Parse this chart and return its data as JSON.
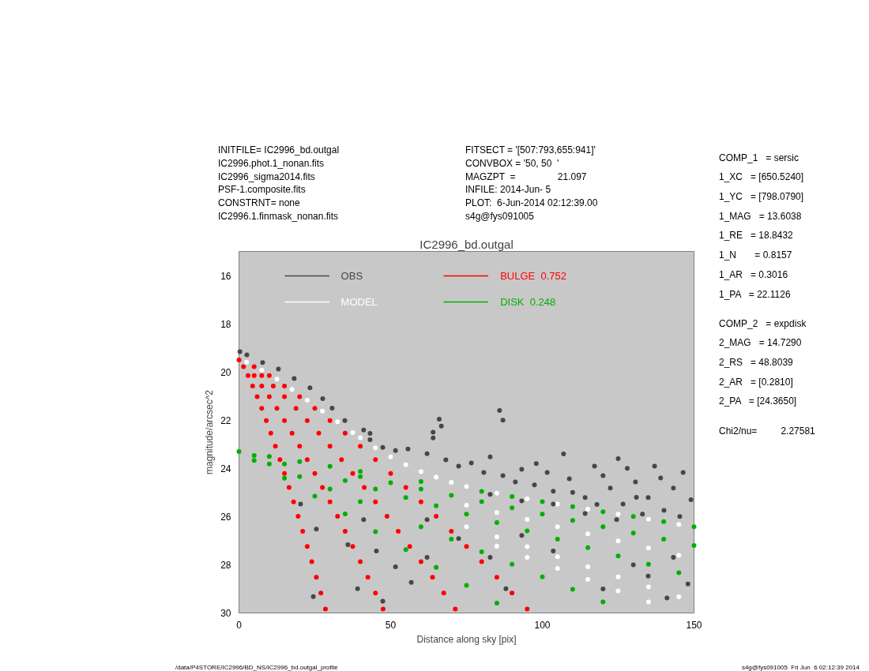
{
  "chart_data": {
    "type": "scatter",
    "title": "IC2996_bd.outgal",
    "xlabel": "Distance along sky [pix]",
    "ylabel": "magnitude/arcsec^2",
    "xlim": [
      0,
      150
    ],
    "xticks": [
      0,
      50,
      100,
      150
    ],
    "ylim": [
      30,
      15
    ],
    "yticks": [
      16,
      18,
      20,
      22,
      24,
      26,
      28,
      30
    ],
    "marker": "circle",
    "legend": "top left",
    "annotations": [
      "INITFILE= IC2996_bd.outgal\nIC2996.phot.1_nonan.fits\nIC2996_sigma2014.fits\nPSF-1.composite.fits\nCONSTRNT= none\nIC2996.1.finmask_nonan.fits",
      "FITSECT = '[507:793,655:941]'\nCONVBOX = '50, 50  '\nMAGZPT  =                21.097\nINFILE: 2014-Jun- 5\nPLOT:  6-Jun-2014 02:12:39.00\ns4g@fys091005",
      "COMP_1   = sersic\n1_XC   = [650.5240]\n1_YC   = [798.0790]\n1_MAG   = 13.6038\n1_RE   = 18.8432\n1_N       = 0.8157\n1_AR   = 0.3016\n1_PA   = 22.1126",
      "COMP_2   = expdisk\n2_MAG   = 14.7290\n2_RS   = 48.8039\n2_AR   = [0.2810]\n2_PA   = [24.3650]",
      "Chi2/nu=         2.27581",
      "/data/P4STORE/IC2996/BD_NS/IC2996_bd.outgal_profile",
      "s4g@fys091005  Fri Jun  6 02:12:39 2014"
    ],
    "series": [
      {
        "name": "OBS",
        "color": "#474747",
        "x": [
          0.3,
          2.6,
          7.8,
          13,
          18.2,
          23.4,
          27.6,
          30.7,
          34.9,
          41.1,
          43.2,
          43.2,
          47.4,
          51.6,
          55.7,
          62,
          64,
          68.2,
          72.4,
          76.6,
          80.7,
          82.8,
          87,
          91.1,
          93.2,
          97.4,
          101.6,
          103.6,
          108.9,
          114.1,
          117.2,
          122.4,
          126.6,
          130.7,
          134.9,
          137,
          140.1,
          143.2,
          145.3,
          146.4,
          93.2,
          114.1,
          124.5,
          82.8,
          103.6,
          64,
          66,
          66.7,
          87,
          85.9,
          62,
          72.4,
          82.8,
          93.2,
          103.6,
          134.9,
          143.2,
          141.1,
          88,
          25.5,
          24.5,
          35.9,
          41.1,
          45.3,
          51.6,
          56.8,
          62,
          39.1,
          47.4,
          20.3,
          110,
          120,
          128,
          133,
          149,
          118,
          98,
          107,
          125,
          139,
          131,
          120,
          130,
          148
        ],
        "values": [
          19.16,
          19.29,
          19.61,
          19.88,
          20.27,
          20.66,
          21.11,
          21.5,
          22.02,
          22.41,
          22.55,
          22.81,
          23.13,
          23.26,
          23.2,
          23.39,
          22.74,
          23.65,
          23.91,
          23.78,
          24.17,
          23.52,
          24.3,
          24.56,
          24.04,
          24.69,
          24.17,
          24.95,
          24.43,
          25.21,
          23.91,
          24.82,
          25.48,
          24.56,
          25.21,
          23.91,
          25.74,
          24.82,
          26.0,
          24.17,
          25.35,
          25.87,
          26.13,
          25.08,
          25.48,
          22.5,
          21.96,
          22.25,
          22.0,
          21.6,
          26.13,
          26.91,
          27.69,
          26.78,
          27.43,
          28.47,
          27.69,
          29.38,
          28.99,
          26.52,
          29.32,
          27.17,
          26.13,
          27.43,
          28.08,
          28.73,
          27.69,
          28.99,
          29.51,
          25.48,
          25.0,
          24.3,
          24.0,
          25.9,
          25.3,
          25.5,
          23.8,
          23.4,
          23.6,
          24.4,
          25.2,
          29.0,
          28.0,
          28.8
        ]
      },
      {
        "name": "MODEL",
        "color": "#ffffff",
        "x": [
          2.5,
          7.5,
          12.5,
          17.5,
          22.5,
          27.5,
          32.5,
          37.5,
          40,
          45,
          50,
          55,
          60,
          65,
          70,
          75,
          85,
          95,
          105,
          115,
          125,
          135,
          145,
          75,
          85,
          95,
          105,
          115,
          125,
          135,
          145,
          75,
          85,
          95,
          105,
          115,
          125,
          135,
          145,
          85,
          95,
          105,
          115,
          125,
          135
        ],
        "values": [
          19.59,
          19.92,
          20.3,
          20.72,
          21.17,
          21.62,
          22.07,
          22.52,
          22.73,
          23.15,
          23.52,
          23.85,
          24.14,
          24.37,
          24.58,
          24.75,
          25.03,
          25.26,
          25.48,
          25.69,
          25.9,
          26.11,
          26.32,
          25.53,
          25.83,
          26.12,
          26.42,
          26.72,
          27.01,
          27.31,
          27.61,
          26.42,
          26.84,
          27.25,
          27.67,
          28.08,
          28.5,
          28.92,
          29.33,
          27.23,
          27.69,
          28.15,
          28.61,
          29.08,
          29.54
        ]
      },
      {
        "name": "BULGE  0.752",
        "color": "#ff0000",
        "x": [
          0,
          5,
          10,
          15,
          20,
          25,
          30,
          35,
          40,
          45,
          50,
          55,
          60,
          65,
          70,
          75,
          80,
          85,
          90,
          95,
          7.5,
          11.3,
          15,
          18.8,
          22.5,
          26.3,
          30,
          33.8,
          37.5,
          41.3,
          45,
          48.8,
          52.5,
          56.3,
          60,
          63.8,
          67.5,
          71.3,
          5,
          7.5,
          10,
          12.5,
          15,
          17.5,
          20,
          22.5,
          25,
          27.5,
          30,
          32.5,
          35,
          37.5,
          40,
          42.5,
          45,
          47.5,
          1.5,
          3,
          4.5,
          6,
          7.5,
          9,
          10.5,
          12,
          13.5,
          15,
          16.5,
          18,
          19.5,
          21,
          22.5,
          24,
          25.5,
          27,
          28.5
        ],
        "values": [
          19.5,
          19.78,
          20.15,
          20.58,
          21.03,
          21.51,
          22.02,
          22.54,
          23.08,
          23.64,
          24.21,
          24.79,
          25.39,
          25.99,
          26.61,
          27.24,
          27.87,
          28.52,
          29.17,
          29.84,
          20.15,
          20.58,
          21.03,
          21.51,
          22.02,
          22.54,
          23.08,
          23.64,
          24.21,
          24.79,
          25.39,
          25.99,
          26.61,
          27.24,
          27.87,
          28.52,
          29.17,
          29.84,
          20.15,
          20.58,
          21.03,
          21.51,
          22.02,
          22.54,
          23.08,
          23.64,
          24.21,
          24.79,
          25.39,
          25.99,
          26.61,
          27.24,
          27.87,
          28.52,
          29.17,
          29.84,
          19.78,
          20.15,
          20.58,
          21.03,
          21.51,
          22.02,
          22.54,
          23.08,
          23.64,
          24.21,
          24.79,
          25.39,
          25.99,
          26.61,
          27.24,
          27.87,
          28.52,
          29.17,
          29.84
        ]
      },
      {
        "name": "DISK  0.248",
        "color": "#00b000",
        "x": [
          0,
          10,
          20,
          30,
          40,
          60,
          80,
          90,
          100,
          110,
          120,
          130,
          140,
          150,
          40,
          50,
          60,
          70,
          80,
          90,
          100,
          110,
          120,
          130,
          140,
          150,
          5,
          15,
          35,
          45,
          55,
          65,
          75,
          85,
          95,
          105,
          115,
          125,
          135,
          145,
          10,
          20,
          30,
          40,
          60,
          70,
          80,
          90,
          100,
          110,
          120,
          5,
          15,
          25,
          35,
          45,
          55,
          65,
          75,
          85
        ],
        "values": [
          23.3,
          23.51,
          23.72,
          23.92,
          24.13,
          24.55,
          24.96,
          25.17,
          25.38,
          25.59,
          25.8,
          26.0,
          26.21,
          26.42,
          24.34,
          24.6,
          24.86,
          25.12,
          25.38,
          25.64,
          25.9,
          26.16,
          26.42,
          26.68,
          26.94,
          27.2,
          23.47,
          23.82,
          24.51,
          24.86,
          25.21,
          25.55,
          25.9,
          26.25,
          26.59,
          26.94,
          27.29,
          27.63,
          27.98,
          28.33,
          23.82,
          24.34,
          24.86,
          25.38,
          26.42,
          26.94,
          27.46,
          27.98,
          28.5,
          29.02,
          29.54,
          23.67,
          24.41,
          25.15,
          25.89,
          26.63,
          27.37,
          28.11,
          28.85,
          29.59
        ]
      }
    ]
  }
}
